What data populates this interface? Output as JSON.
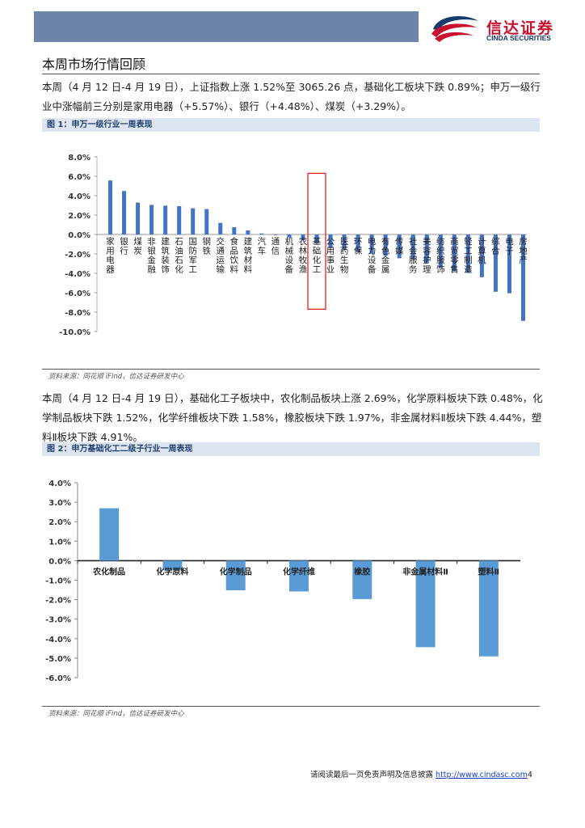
{
  "header": {
    "logo_cn": "信达证券",
    "logo_en": "CINDA SECURITIES",
    "colors": {
      "band": "#6b86a8",
      "logo_red": "#c8102e",
      "logo_blue": "#1a3a6b"
    }
  },
  "section_title": "本周市场行情回顾",
  "para1": "本周（4 月 12 日-4 月 19 日），上证指数上涨 1.52%至 3065.26 点，基础化工板块下跌 0.89%；申万一级行业中涨幅前三分别是家用电器（+5.57%）、银行（+4.48%）、煤炭（+3.29%）。",
  "fig1_title": "图 1：申万一级行业一周表现",
  "fig1_source": "资料来源：同花顺 iFind，信达证券研发中心",
  "para2": "本周（4 月 12 日-4 月 19 日），基础化工子板块中，农化制品板块上涨 2.69%，化学原料板块下跌 0.48%，化学制品板块下跌 1.52%，化学纤维板块下跌 1.58%，橡胶板块下跌 1.97%，非金属材料Ⅱ板块下跌 4.44%，塑料Ⅱ板块下跌 4.91%。",
  "fig2_title": "图 2：申万基础化工二级子行业一周表现",
  "fig2_source": "资料来源：同花顺 iFind，信达证券研发中心",
  "footer_text": "请阅读最后一页免责声明及信息披露",
  "footer_link": "http://www.cindasc.com",
  "page_number": "4",
  "chart_data": [
    {
      "type": "bar",
      "title": "",
      "ylim": [
        -10,
        8
      ],
      "yticks": [
        "8.0%",
        "6.0%",
        "4.0%",
        "2.0%",
        "0.0%",
        "-2.0%",
        "-4.0%",
        "-6.0%",
        "-8.0%",
        "-10.0%"
      ],
      "bar_color": "#4472c4",
      "highlight_category": "基础化工",
      "highlight_color": "#e02020",
      "categories": [
        "家用电器",
        "银行",
        "煤炭",
        "非银金融",
        "建筑装饰",
        "石油石化",
        "国防军工",
        "钢铁",
        "交通运输",
        "食品饮料",
        "建筑材料",
        "汽车",
        "通信",
        "机械设备",
        "农林牧渔",
        "基础化工",
        "公用事业",
        "医药生物",
        "环保",
        "电力设备",
        "有色金属",
        "传媒",
        "社会服务",
        "美容护理",
        "纺织服饰",
        "商贸零售",
        "轻工制造",
        "计算机",
        "综合",
        "电子",
        "房地产"
      ],
      "values": [
        5.57,
        4.48,
        3.29,
        3.05,
        2.97,
        2.92,
        2.7,
        2.62,
        1.2,
        0.75,
        0.42,
        0.1,
        -0.05,
        -0.3,
        -0.6,
        -0.89,
        -1.4,
        -1.6,
        -1.8,
        -2.0,
        -2.2,
        -2.45,
        -2.55,
        -3.0,
        -3.4,
        -3.8,
        -3.95,
        -4.4,
        -5.9,
        -6.05,
        -8.9
      ]
    },
    {
      "type": "bar",
      "title": "",
      "ylim": [
        -6,
        4
      ],
      "yticks": [
        "4.0%",
        "3.0%",
        "2.0%",
        "1.0%",
        "0.0%",
        "-1.0%",
        "-2.0%",
        "-3.0%",
        "-4.0%",
        "-5.0%",
        "-6.0%"
      ],
      "bar_color": "#5b9bd5",
      "categories": [
        "农化制品",
        "化学原料",
        "化学制品",
        "化学纤维",
        "橡胶",
        "非金属材料Ⅱ",
        "塑料Ⅱ"
      ],
      "values": [
        2.69,
        -0.48,
        -1.52,
        -1.58,
        -1.97,
        -4.44,
        -4.91
      ]
    }
  ]
}
